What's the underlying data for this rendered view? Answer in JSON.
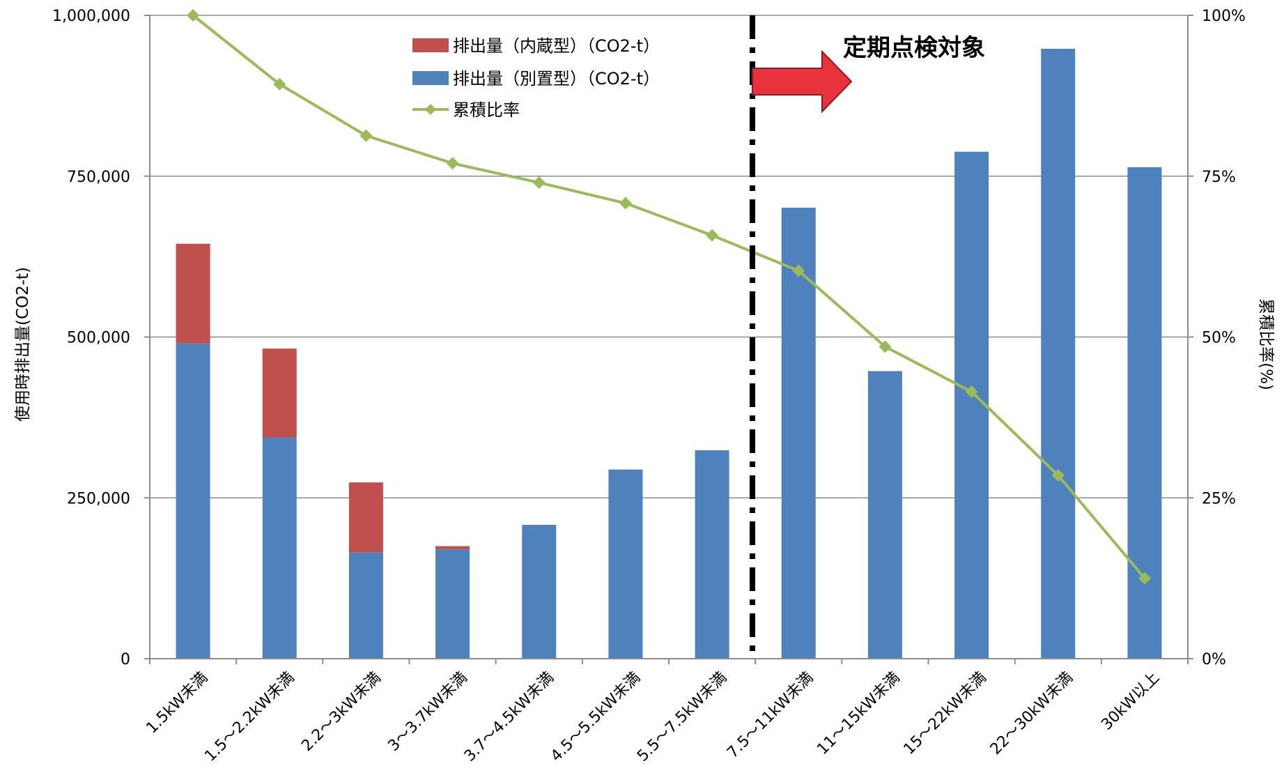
{
  "chart_data": {
    "type": "bar",
    "categories": [
      "1.5kW未満",
      "1.5～2.2kW未満",
      "2.2～3kW未満",
      "3～3.7kW未満",
      "3.7～4.5kW未満",
      "4.5～5.5kW未満",
      "5.5～7.5kW未満",
      "7.5～11kW未満",
      "11～15kW未満",
      "15～22kW未満",
      "22～30kW未満",
      "30kW以上"
    ],
    "series": [
      {
        "name": "排出量（別置型）（CO2-t）",
        "kind": "bar",
        "axis": "left",
        "color": "#4F81BD",
        "values": [
          490000,
          344000,
          165000,
          170000,
          208000,
          294000,
          324000,
          701000,
          447000,
          788000,
          948000,
          764000
        ]
      },
      {
        "name": "排出量（内蔵型）（CO2-t）",
        "kind": "bar",
        "axis": "left",
        "color": "#C0504D",
        "values": [
          155000,
          138000,
          109000,
          5000,
          0,
          0,
          0,
          0,
          0,
          0,
          0,
          0
        ]
      },
      {
        "name": "累積比率",
        "kind": "line",
        "axis": "right",
        "color": "#9BBB59",
        "values": [
          100,
          89.3,
          81.3,
          77,
          74,
          70.8,
          65.8,
          60.3,
          48.5,
          41.5,
          28.5,
          12.5
        ]
      }
    ],
    "ylabel": "使用時排出量(CO2-t)",
    "y2label": "累積比率(%)",
    "ylim": [
      0,
      1000000
    ],
    "y2lim": [
      0,
      100
    ],
    "yticks": [
      "0",
      "250,000",
      "500,000",
      "750,000",
      "1,000,000"
    ],
    "y2ticks": [
      "0%",
      "25%",
      "50%",
      "75%",
      "100%"
    ],
    "grid": true,
    "legend_position": "top-center",
    "annotation": {
      "text": "定期点検対象",
      "divider_between": [
        "5.5～7.5kW未満",
        "7.5～11kW未満"
      ],
      "arrow_color": "#E8323C"
    }
  }
}
